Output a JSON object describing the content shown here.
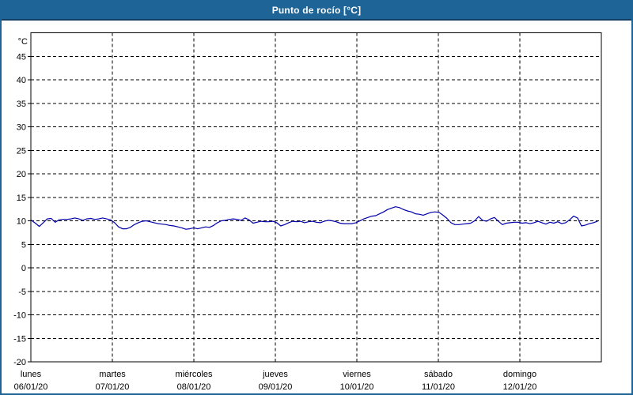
{
  "window": {
    "title": "Punto de rocío [°C]"
  },
  "colors": {
    "titlebar_bg": "#1f6496",
    "titlebar_border_bottom": "#123f63",
    "title_text": "#ffffff",
    "outer_border": "#1f6496",
    "plot_background": "#ffffff",
    "axis_frame": "#000000",
    "gridline": "#000000",
    "tick_text": "#000000",
    "series_line": "#0000aa"
  },
  "chart_data": {
    "type": "line",
    "title": "Punto de rocío [°C]",
    "y_unit_label": "°C",
    "ylim": [
      -20,
      50
    ],
    "ytick_step": 5,
    "ytick_labels": [
      "45",
      "40",
      "35",
      "30",
      "25",
      "20",
      "15",
      "10",
      "5",
      "0",
      "-5",
      "-10",
      "-15",
      "-20"
    ],
    "grid": true,
    "legend": "none",
    "x_days": [
      {
        "name": "lunes",
        "date": "06/01/20"
      },
      {
        "name": "martes",
        "date": "07/01/20"
      },
      {
        "name": "miércoles",
        "date": "08/01/20"
      },
      {
        "name": "jueves",
        "date": "09/01/20"
      },
      {
        "name": "viernes",
        "date": "10/01/20"
      },
      {
        "name": "sábado",
        "date": "11/01/20"
      },
      {
        "name": "domingo",
        "date": "12/01/20"
      }
    ],
    "series": [
      {
        "name": "Punto de rocío",
        "color": "#0000aa",
        "x_start_frac": 0.001,
        "x_end_frac": 0.993,
        "values": [
          10.1,
          9.5,
          8.8,
          9.6,
          10.4,
          10.5,
          9.7,
          10.2,
          10.3,
          10.3,
          10.4,
          10.6,
          10.4,
          10.1,
          10.4,
          10.5,
          10.3,
          10.4,
          10.6,
          10.4,
          10.2,
          9.6,
          8.7,
          8.3,
          8.3,
          8.6,
          9.2,
          9.6,
          9.9,
          10.0,
          9.8,
          9.6,
          9.4,
          9.3,
          9.2,
          9.0,
          8.9,
          8.7,
          8.5,
          8.2,
          8.3,
          8.5,
          8.3,
          8.5,
          8.7,
          8.6,
          9.0,
          9.6,
          10.0,
          10.1,
          10.3,
          10.4,
          10.3,
          10.1,
          10.6,
          10.2,
          9.5,
          9.7,
          9.9,
          9.8,
          9.8,
          9.9,
          9.6,
          8.9,
          9.2,
          9.6,
          9.9,
          9.8,
          9.9,
          9.6,
          9.8,
          9.9,
          9.7,
          9.6,
          9.9,
          10.1,
          10.0,
          9.8,
          9.5,
          9.4,
          9.4,
          9.4,
          9.6,
          10.0,
          10.4,
          10.7,
          11.0,
          11.1,
          11.5,
          11.9,
          12.4,
          12.7,
          13.0,
          12.8,
          12.4,
          12.1,
          11.9,
          11.5,
          11.4,
          11.2,
          11.5,
          11.8,
          11.9,
          11.8,
          11.2,
          10.5,
          9.6,
          9.2,
          9.2,
          9.3,
          9.4,
          9.5,
          10.0,
          10.9,
          10.1,
          9.9,
          10.4,
          10.7,
          9.9,
          9.2,
          9.5,
          9.6,
          9.7,
          9.7,
          9.5,
          9.6,
          9.4,
          9.6,
          9.9,
          9.6,
          9.3,
          9.7,
          9.5,
          9.8,
          9.4,
          9.6,
          10.2,
          11.0,
          10.6,
          8.9,
          9.1,
          9.4,
          9.6,
          9.9
        ]
      }
    ]
  }
}
